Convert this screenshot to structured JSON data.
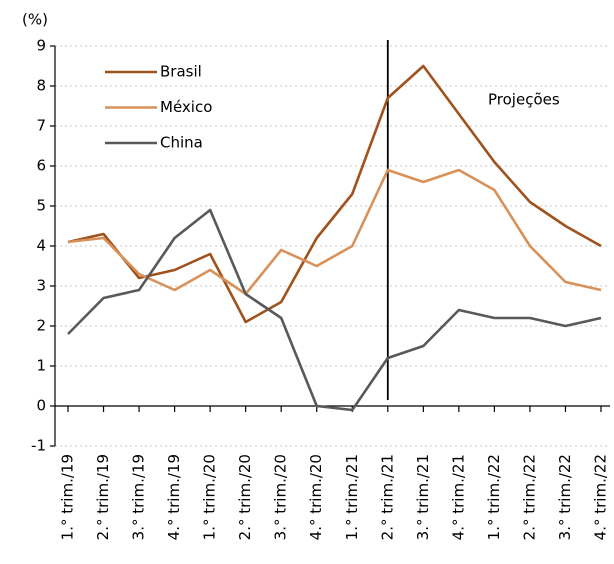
{
  "chart_data": {
    "type": "line",
    "y_unit_label": "(%)",
    "annotation": {
      "text": "Projeções",
      "divider_at": "2.° trim./21"
    },
    "categories": [
      "1.° trim./19",
      "2.° trim./19",
      "3.° trim./19",
      "4.° trim./19",
      "1.° trim./20",
      "2.° trim./20",
      "3.° trim./20",
      "4.° trim./20",
      "1.° trim./21",
      "2.° trim./21",
      "3.° trim./21",
      "4.° trim./21",
      "1.° trim./22",
      "2.° trim./22",
      "3.° trim./22",
      "4.° trim./22"
    ],
    "series": [
      {
        "name": "Brasil",
        "color": "#a0521d",
        "values": [
          4.1,
          4.3,
          3.2,
          3.4,
          3.8,
          2.1,
          2.6,
          4.2,
          5.3,
          7.7,
          8.5,
          7.3,
          6.1,
          5.1,
          4.5,
          4.0
        ]
      },
      {
        "name": "México",
        "color": "#d9915a",
        "values": [
          4.1,
          4.2,
          3.3,
          2.9,
          3.4,
          2.8,
          3.9,
          3.5,
          4.0,
          5.9,
          5.6,
          5.9,
          5.4,
          4.0,
          3.1,
          2.9
        ]
      },
      {
        "name": "China",
        "color": "#59595b",
        "values": [
          1.8,
          2.7,
          2.9,
          4.2,
          4.9,
          2.8,
          2.2,
          0.0,
          -0.1,
          1.2,
          1.5,
          2.4,
          2.2,
          2.2,
          2.0,
          2.2
        ]
      }
    ],
    "ylim": [
      -1,
      9
    ],
    "yticks": [
      -1,
      0,
      1,
      2,
      3,
      4,
      5,
      6,
      7,
      8,
      9
    ],
    "grid": true,
    "legend": "upper-left"
  }
}
